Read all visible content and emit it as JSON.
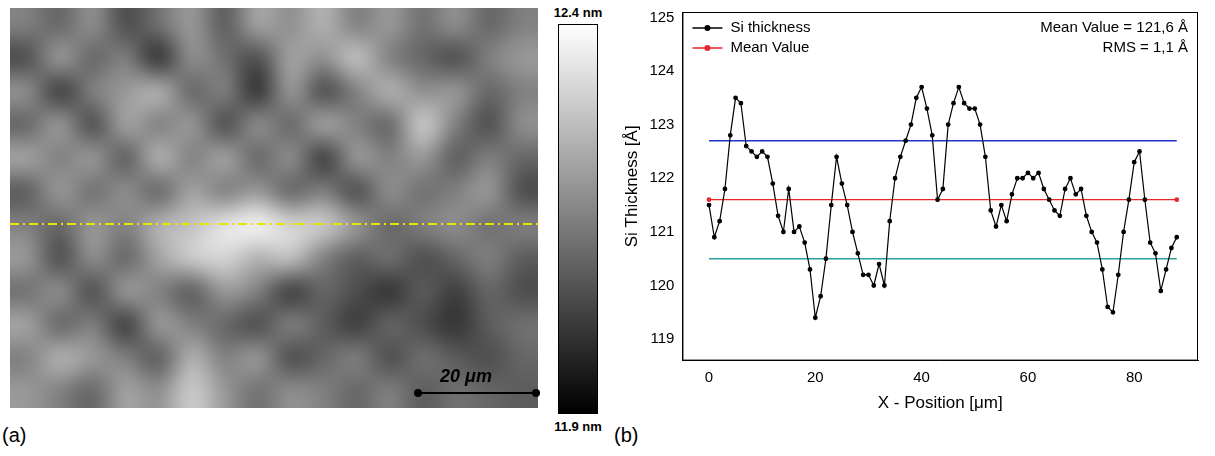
{
  "chart_data": [
    {
      "type": "heatmap",
      "panel": "(a)",
      "tick_labels": false,
      "cells": [
        [
          12.15,
          12.1,
          12.18,
          12.05,
          12.12,
          12.2,
          12.08,
          12.22,
          12.18,
          12.25,
          12.15,
          12.2,
          12.12,
          12.18,
          12.1,
          12.15
        ],
        [
          12.05,
          12.2,
          12.1,
          12.15,
          12.0,
          12.18,
          12.12,
          12.05,
          12.22,
          12.18,
          12.28,
          12.15,
          12.1,
          12.05,
          12.15,
          12.2
        ],
        [
          12.18,
          12.02,
          12.15,
          12.2,
          12.25,
          12.1,
          12.15,
          12.0,
          12.2,
          12.05,
          12.15,
          12.25,
          12.18,
          12.2,
          12.1,
          12.15
        ],
        [
          12.1,
          12.2,
          12.05,
          12.22,
          12.15,
          12.2,
          12.05,
          12.18,
          12.1,
          12.22,
          12.15,
          12.1,
          12.3,
          12.15,
          12.05,
          12.18
        ],
        [
          12.22,
          12.15,
          12.2,
          12.08,
          12.25,
          12.15,
          12.22,
          12.1,
          12.18,
          12.02,
          12.2,
          12.15,
          12.2,
          12.08,
          12.15,
          12.1
        ],
        [
          12.08,
          12.2,
          12.12,
          12.18,
          12.1,
          12.22,
          12.15,
          12.2,
          12.1,
          12.15,
          12.05,
          12.18,
          12.12,
          12.15,
          12.2,
          12.05
        ],
        [
          12.15,
          12.1,
          12.2,
          12.15,
          12.25,
          12.28,
          12.35,
          12.38,
          12.32,
          12.3,
          12.2,
          12.1,
          12.15,
          12.18,
          12.12,
          12.15
        ],
        [
          12.2,
          12.05,
          12.18,
          12.1,
          12.22,
          12.3,
          12.32,
          12.25,
          12.28,
          12.15,
          12.08,
          12.12,
          12.05,
          12.1,
          12.15,
          12.08
        ],
        [
          12.12,
          12.18,
          12.05,
          12.2,
          12.15,
          12.08,
          12.2,
          12.15,
          12.02,
          12.1,
          12.05,
          12.0,
          12.08,
          12.02,
          12.1,
          12.05
        ],
        [
          12.22,
          12.1,
          12.15,
          12.02,
          12.2,
          12.15,
          12.1,
          12.05,
          12.15,
          12.08,
          12.02,
          12.1,
          12.05,
          12.0,
          12.08,
          12.12
        ],
        [
          12.15,
          12.25,
          12.2,
          12.15,
          12.08,
          12.25,
          12.15,
          12.2,
          12.05,
          12.1,
          12.15,
          12.05,
          12.12,
          12.08,
          12.05,
          12.1
        ],
        [
          12.2,
          12.15,
          12.1,
          12.22,
          12.18,
          12.3,
          12.2,
          12.12,
          12.18,
          12.15,
          12.1,
          12.15,
          12.08,
          12.12,
          12.1,
          12.08
        ]
      ],
      "colorbar_range": [
        11.9,
        12.4
      ],
      "colorbar_ticks": [
        {
          "value": 12.4,
          "label": "12.4 nm"
        },
        {
          "value": 11.9,
          "label": "11.9 nm"
        }
      ],
      "annotations": [
        "20 μm"
      ]
    },
    {
      "type": "line",
      "panel": "(b)",
      "x_label": "X - Position [μm]",
      "y_label": "Si Thickness [Å]",
      "x": [
        0,
        1,
        2,
        3,
        4,
        5,
        6,
        7,
        8,
        9,
        10,
        11,
        12,
        13,
        14,
        15,
        16,
        17,
        18,
        19,
        20,
        21,
        22,
        23,
        24,
        25,
        26,
        27,
        28,
        29,
        30,
        31,
        32,
        33,
        34,
        35,
        36,
        37,
        38,
        39,
        40,
        41,
        42,
        43,
        44,
        45,
        46,
        47,
        48,
        49,
        50,
        51,
        52,
        53,
        54,
        55,
        56,
        57,
        58,
        59,
        60,
        61,
        62,
        63,
        64,
        65,
        66,
        67,
        68,
        69,
        70,
        71,
        72,
        73,
        74,
        75,
        76,
        77,
        78,
        79,
        80,
        81,
        82,
        83,
        84,
        85,
        86,
        87,
        88
      ],
      "series": [
        {
          "name": "Si thickness",
          "color": "#000000",
          "marker": "circle",
          "line_style": "solid",
          "values": [
            121.5,
            120.9,
            121.2,
            121.8,
            122.8,
            123.5,
            123.4,
            122.6,
            122.5,
            122.4,
            122.5,
            122.4,
            121.9,
            121.3,
            121.0,
            121.8,
            121.0,
            121.1,
            120.8,
            120.3,
            119.4,
            119.8,
            120.5,
            121.5,
            122.4,
            121.9,
            121.5,
            121.0,
            120.6,
            120.2,
            120.2,
            120.0,
            120.4,
            120.0,
            121.2,
            122.0,
            122.4,
            122.7,
            123.0,
            123.5,
            123.7,
            123.3,
            122.8,
            121.6,
            121.8,
            123.0,
            123.4,
            123.7,
            123.4,
            123.3,
            123.3,
            123.0,
            122.4,
            121.4,
            121.1,
            121.5,
            121.2,
            121.7,
            122.0,
            122.0,
            122.1,
            122.0,
            122.1,
            121.8,
            121.6,
            121.4,
            121.3,
            121.8,
            122.0,
            121.7,
            121.8,
            121.3,
            121.0,
            120.8,
            120.3,
            119.6,
            119.5,
            120.2,
            121.0,
            121.6,
            122.3,
            122.5,
            121.6,
            120.8,
            120.6,
            119.9,
            120.3,
            120.7,
            120.9
          ]
        },
        {
          "name": "Mean Value",
          "color": "#e8262b",
          "marker": "circle",
          "line_style": "solid",
          "x": [
            0,
            88
          ],
          "values": [
            121.6,
            121.6
          ]
        },
        {
          "color": "#2233cc",
          "line_style": "solid",
          "x": [
            0,
            88
          ],
          "values": [
            122.7,
            122.7
          ]
        },
        {
          "color": "#2aa198",
          "line_style": "solid",
          "x": [
            0,
            88
          ],
          "values": [
            120.5,
            120.5
          ]
        }
      ],
      "xlim": [
        -5,
        92
      ],
      "xticks": [
        0,
        20,
        40,
        60,
        80
      ],
      "ylim": [
        118.6,
        125.1
      ],
      "yticks": [
        119,
        120,
        121,
        122,
        123,
        124,
        125
      ],
      "grid": false,
      "legend": "upper left",
      "annotations": [
        "Mean Value = 121,6 Å",
        "RMS = 1,1 Å"
      ]
    }
  ]
}
